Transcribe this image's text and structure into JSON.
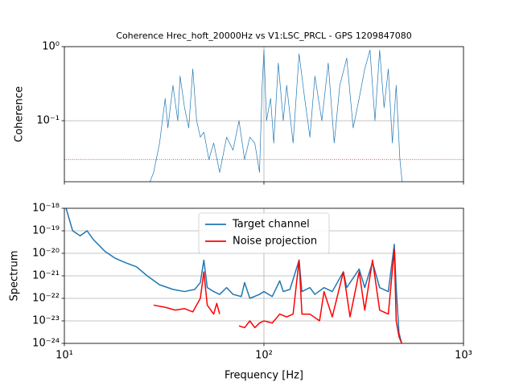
{
  "chart_data": [
    {
      "type": "line",
      "title": "Coherence Hrec_hoft_20000Hz vs V1:LSC_PRCL - GPS 1209847080",
      "ylabel": "Coherence",
      "xscale": "log",
      "yscale": "log",
      "grid": true,
      "xlim": [
        10,
        1000
      ],
      "xticks": [
        {
          "value": 10,
          "label": "10¹"
        },
        {
          "value": 100,
          "label": "10²"
        },
        {
          "value": 1000,
          "label": "10³"
        }
      ],
      "ylim": [
        0.015,
        1
      ],
      "yticks": [
        {
          "value": 0.1,
          "label": "10⁻¹"
        },
        {
          "value": 1,
          "label": "10⁰"
        }
      ],
      "ref_line": {
        "value": 0.03,
        "color": "red"
      },
      "x": [
        26,
        28,
        30,
        32,
        33,
        35,
        37,
        38,
        40,
        42,
        44,
        46,
        48,
        50,
        53,
        56,
        60,
        65,
        70,
        75,
        80,
        85,
        90,
        95,
        98,
        100,
        103,
        108,
        112,
        118,
        125,
        130,
        140,
        150,
        160,
        170,
        180,
        195,
        210,
        225,
        240,
        260,
        280,
        300,
        320,
        340,
        360,
        380,
        400,
        420,
        440,
        460,
        480,
        500
      ],
      "series": [
        {
          "color": "#1f77b4",
          "values": [
            0.012,
            0.02,
            0.05,
            0.2,
            0.08,
            0.3,
            0.1,
            0.4,
            0.15,
            0.08,
            0.5,
            0.1,
            0.06,
            0.07,
            0.03,
            0.05,
            0.02,
            0.06,
            0.04,
            0.1,
            0.03,
            0.06,
            0.05,
            0.02,
            0.3,
            0.9,
            0.1,
            0.2,
            0.05,
            0.6,
            0.1,
            0.3,
            0.05,
            0.8,
            0.2,
            0.06,
            0.4,
            0.1,
            0.6,
            0.05,
            0.3,
            0.7,
            0.08,
            0.2,
            0.5,
            0.9,
            0.1,
            0.9,
            0.15,
            0.5,
            0.05,
            0.3,
            0.03,
            0.01
          ]
        }
      ]
    },
    {
      "type": "line",
      "ylabel": "Spectrum",
      "xlabel": "Frequency [Hz]",
      "xscale": "log",
      "yscale": "log",
      "grid": true,
      "legend": "upper center",
      "xlim": [
        10,
        1000
      ],
      "xticks": [
        {
          "value": 10,
          "label": "10¹"
        },
        {
          "value": 100,
          "label": "10²"
        },
        {
          "value": 1000,
          "label": "10³"
        }
      ],
      "ylim": [
        1e-24,
        1e-18
      ],
      "yticks": [
        {
          "value": 1e-24,
          "label": "10⁻²⁴"
        },
        {
          "value": 1e-23,
          "label": "10⁻²³"
        },
        {
          "value": 1e-22,
          "label": "10⁻²²"
        },
        {
          "value": 1e-21,
          "label": "10⁻²¹"
        },
        {
          "value": 1e-20,
          "label": "10⁻²⁰"
        },
        {
          "value": 1e-19,
          "label": "10⁻¹⁹"
        },
        {
          "value": 1e-18,
          "label": "10⁻¹⁸"
        }
      ],
      "series": [
        {
          "name": "Target channel",
          "color": "#1f77b4",
          "x": [
            10.2,
            11,
            12,
            13,
            14,
            16,
            18,
            20,
            23,
            26,
            30,
            35,
            40,
            45,
            48,
            50,
            52,
            56,
            60,
            65,
            70,
            77,
            80,
            85,
            95,
            100,
            110,
            120,
            125,
            135,
            150,
            155,
            170,
            180,
            200,
            220,
            250,
            260,
            300,
            320,
            350,
            380,
            420,
            450,
            460,
            475,
            490
          ],
          "values": [
            1e-18,
            1e-19,
            6e-20,
            1e-19,
            4e-20,
            1.2e-20,
            6e-21,
            4e-21,
            2.5e-21,
            1e-21,
            4e-22,
            2.5e-22,
            2e-22,
            2.5e-22,
            5e-22,
            5e-21,
            3e-22,
            2e-22,
            1.5e-22,
            3e-22,
            1.5e-22,
            1.2e-22,
            5e-22,
            1e-22,
            1.5e-22,
            2e-22,
            1.2e-22,
            6e-22,
            2e-22,
            2.5e-22,
            5e-21,
            2e-22,
            3e-22,
            1.5e-22,
            3e-22,
            2e-22,
            1.5e-21,
            3e-22,
            2e-21,
            3e-22,
            4e-21,
            3e-22,
            2e-22,
            2.5e-20,
            3e-22,
            3e-24,
            1e-24
          ]
        },
        {
          "name": "Noise projection",
          "color": "red",
          "x": [
            28,
            32,
            36,
            40,
            44,
            48,
            50,
            52,
            56,
            58,
            60,
            63,
            66,
            70,
            75,
            80,
            85,
            90,
            95,
            100,
            110,
            120,
            130,
            140,
            150,
            155,
            170,
            190,
            200,
            220,
            250,
            270,
            300,
            320,
            350,
            380,
            420,
            450,
            460,
            475,
            490
          ],
          "values": [
            5e-23,
            4e-23,
            3e-23,
            3.5e-23,
            2.5e-23,
            1e-22,
            1.5e-21,
            5e-23,
            2e-23,
            6e-23,
            2e-23,
            null,
            5e-24,
            null,
            6e-24,
            5e-24,
            1e-23,
            5e-24,
            8e-24,
            1e-23,
            8e-24,
            2e-23,
            1.5e-23,
            2e-23,
            5e-21,
            2e-23,
            2e-23,
            1e-23,
            2e-22,
            1.5e-23,
            1.5e-21,
            1.5e-23,
            1.5e-21,
            3e-23,
            5e-21,
            3e-23,
            2e-23,
            1.5e-20,
            1e-23,
            2e-24,
            1e-24
          ]
        }
      ]
    }
  ]
}
